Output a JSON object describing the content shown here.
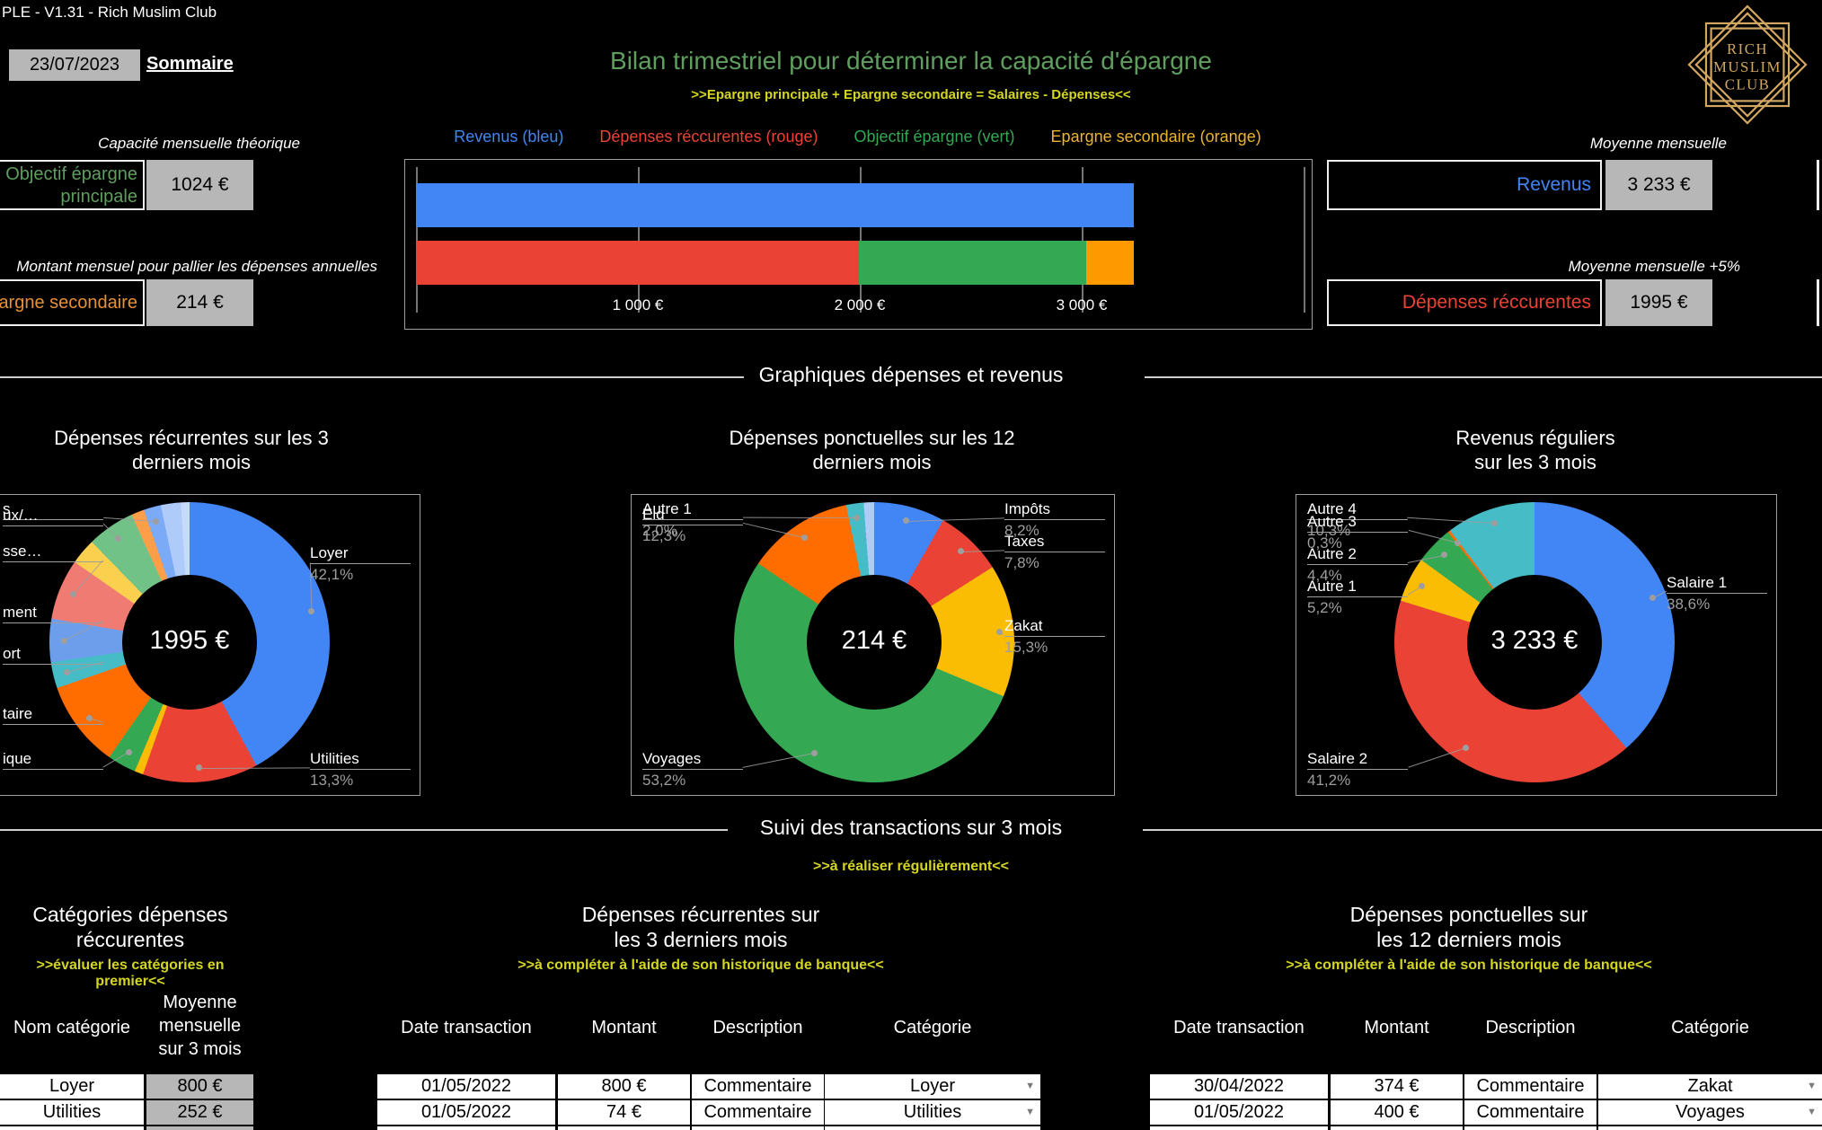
{
  "colors": {
    "green": "#5f9e5e",
    "yellow": "#d4d622",
    "blue": "#4285f4",
    "red": "#ea4335",
    "orange_label": "#e69138",
    "gray_cell": "#b7b7b7",
    "gold": "#d2a860"
  },
  "header": {
    "file_title": "PLE - V1.31 - Rich Muslim Club",
    "date_value": "23/07/2023",
    "summary_link": "Sommaire",
    "title": "Bilan trimestriel pour déterminer la capacité d'épargne",
    "subtitle": ">>Epargne principale + Epargne secondaire = Salaires - Dépenses<<",
    "logo_lines": [
      "RICH",
      "MUSLIM",
      "CLUB"
    ]
  },
  "summary_left": {
    "caption_1": "Capacité mensuelle théorique",
    "label_1": "Objectif épargne principale",
    "value_1": "1024 €",
    "caption_2": "Montant mensuel pour pallier les dépenses annuelles",
    "label_2": "argne secondaire",
    "value_2": "214 €"
  },
  "summary_right": {
    "caption_1": "Moyenne mensuelle",
    "label_1": "Revenus",
    "value_1": "3 233 €",
    "caption_2": "Moyenne mensuelle +5%",
    "label_2": "Dépenses réccurentes",
    "value_2": "1995 €"
  },
  "section_titles": {
    "charts": "Graphiques dépenses et revenus",
    "transactions": "Suivi des transactions sur 3 mois",
    "transactions_note": ">>à réaliser régulièrement<<"
  },
  "chart_data": [
    {
      "type": "bar",
      "orientation": "horizontal",
      "legend": [
        {
          "label": "Revenus (bleu)",
          "color": "#4285f4"
        },
        {
          "label": "Dépenses réccurentes (rouge)",
          "color": "#ea4335"
        },
        {
          "label": "Objectif épargne (vert)",
          "color": "#34a853"
        },
        {
          "label": "Epargne secondaire (orange)",
          "color": "#edb42e"
        }
      ],
      "rows": [
        {
          "segments": [
            {
              "name": "Revenus",
              "value": 3233,
              "color": "#4285f4"
            }
          ]
        },
        {
          "segments": [
            {
              "name": "Dépenses réccurentes",
              "value": 1995,
              "color": "#ea4335"
            },
            {
              "name": "Objectif épargne",
              "value": 1024,
              "color": "#34a853"
            },
            {
              "name": "Epargne secondaire",
              "value": 214,
              "color": "#ff9900"
            }
          ]
        }
      ],
      "xticks": [
        {
          "value": 1000,
          "label": "1 000 €"
        },
        {
          "value": 2000,
          "label": "2 000 €"
        },
        {
          "value": 3000,
          "label": "3 000 €"
        }
      ],
      "xmax": 4036
    },
    {
      "type": "donut",
      "title_lines": [
        "Dépenses récurrentes sur les 3",
        "derniers mois"
      ],
      "center_label": "1995 €",
      "slices": [
        {
          "label": "Loyer",
          "pct_label": "42,1%",
          "value": 42.1,
          "color": "#4285f4"
        },
        {
          "label": "Utilities",
          "pct_label": "13,3%",
          "value": 13.3,
          "color": "#ea4335"
        },
        {
          "label": null,
          "pct_label": null,
          "value": 1.0,
          "color": "#fbbc04"
        },
        {
          "label": "ique",
          "pct_label": null,
          "value": 3.3,
          "color": "#34a853"
        },
        {
          "label": "taire",
          "pct_label": null,
          "value": 10.0,
          "color": "#ff6d01"
        },
        {
          "label": "ort",
          "pct_label": null,
          "value": 3.0,
          "color": "#46bdc6"
        },
        {
          "label": "ment",
          "pct_label": null,
          "value": 5.0,
          "color": "#6d9eeb"
        },
        {
          "label": "sse…",
          "pct_label": null,
          "value": 7.0,
          "color": "#f07b72"
        },
        {
          "label": null,
          "pct_label": null,
          "value": 3.0,
          "color": "#fcd04f"
        },
        {
          "label": "ux/…",
          "pct_label": null,
          "value": 5.5,
          "color": "#71c287"
        },
        {
          "label": null,
          "pct_label": null,
          "value": 1.5,
          "color": "#ff9e48"
        },
        {
          "label": "s",
          "pct_label": null,
          "value": 2.0,
          "color": "#7baaf7"
        },
        {
          "label": null,
          "pct_label": null,
          "value": 2.3,
          "color": "#aecbfa"
        },
        {
          "label": null,
          "pct_label": null,
          "value": 1.0,
          "color": "#c8dafc"
        }
      ]
    },
    {
      "type": "donut",
      "title_lines": [
        "Dépenses ponctuelles sur les 12",
        "derniers mois"
      ],
      "center_label": "214 €",
      "slices": [
        {
          "label": "Impôts",
          "pct_label": "8,2%",
          "value": 8.2,
          "color": "#4285f4"
        },
        {
          "label": "Taxes",
          "pct_label": "7,8%",
          "value": 7.8,
          "color": "#ea4335"
        },
        {
          "label": "Zakat",
          "pct_label": "15,3%",
          "value": 15.3,
          "color": "#fbbc04"
        },
        {
          "label": "Voyages",
          "pct_label": "53,2%",
          "value": 53.2,
          "color": "#34a853"
        },
        {
          "label": "Eid",
          "pct_label": "12,3%",
          "value": 12.3,
          "color": "#ff6d01"
        },
        {
          "label": "Autre 1",
          "pct_label": "2,0%",
          "value": 2.0,
          "color": "#46bdc6"
        },
        {
          "label": null,
          "pct_label": null,
          "value": 1.2,
          "color": "#aecbfa"
        }
      ]
    },
    {
      "type": "donut",
      "title_lines": [
        "Revenus réguliers",
        "sur les 3 mois"
      ],
      "center_label": "3 233 €",
      "slices": [
        {
          "label": "Salaire 1",
          "pct_label": "38,6%",
          "value": 38.6,
          "color": "#4285f4"
        },
        {
          "label": "Salaire 2",
          "pct_label": "41,2%",
          "value": 41.2,
          "color": "#ea4335"
        },
        {
          "label": "Autre 1",
          "pct_label": "5,2%",
          "value": 5.2,
          "color": "#fbbc04"
        },
        {
          "label": "Autre 2",
          "pct_label": "4,4%",
          "value": 4.4,
          "color": "#34a853"
        },
        {
          "label": "Autre 3",
          "pct_label": "0,3%",
          "value": 0.3,
          "color": "#ff6d01"
        },
        {
          "label": "Autre 4",
          "pct_label": "10,3%",
          "value": 10.3,
          "color": "#46bdc6"
        }
      ]
    }
  ],
  "tables": [
    {
      "title_lines": [
        "Catégories dépenses",
        "réccurentes"
      ],
      "note": ">>évaluer les catégories en premier<<",
      "headers": [
        "Nom catégorie",
        "Moyenne\nmensuelle\nsur 3 mois"
      ],
      "rows": [
        [
          "Loyer",
          "800 €"
        ],
        [
          "Utilities",
          "252 €"
        ]
      ]
    },
    {
      "title_lines": [
        "Dépenses récurrentes sur",
        "les 3 derniers mois"
      ],
      "note": ">>à compléter à l'aide de son historique de banque<<",
      "headers": [
        "Date transaction",
        "Montant",
        "Description",
        "Catégorie"
      ],
      "rows": [
        [
          "01/05/2022",
          "800 €",
          "Commentaire",
          "Loyer"
        ],
        [
          "01/05/2022",
          "74 €",
          "Commentaire",
          "Utilities"
        ]
      ]
    },
    {
      "title_lines": [
        "Dépenses ponctuelles sur",
        "les 12 derniers mois"
      ],
      "note": ">>à compléter à l'aide de son historique de banque<<",
      "headers": [
        "Date transaction",
        "Montant",
        "Description",
        "Catégorie"
      ],
      "rows": [
        [
          "30/04/2022",
          "374 €",
          "Commentaire",
          "Zakat"
        ],
        [
          "01/05/2022",
          "400 €",
          "Commentaire",
          "Voyages"
        ]
      ]
    }
  ]
}
